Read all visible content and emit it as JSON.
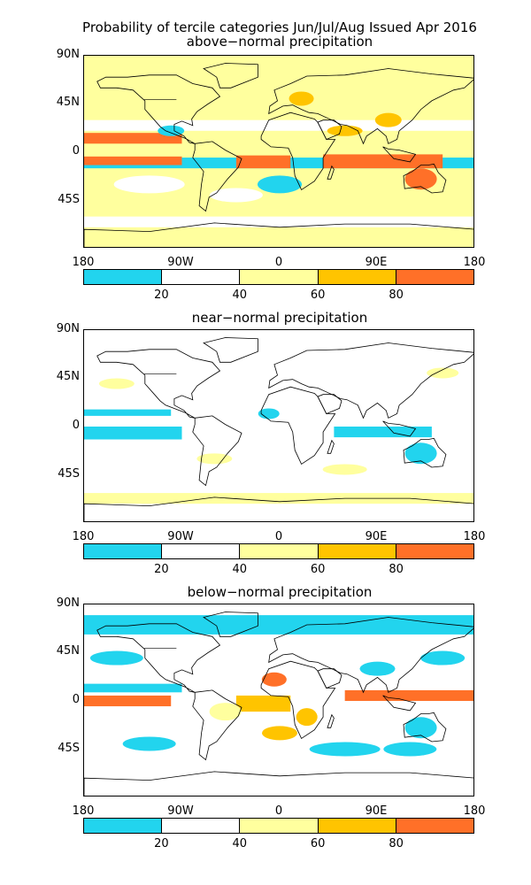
{
  "title": "Probability of tercile categories Jun/Jul/Aug Issued Apr 2016",
  "panels": [
    {
      "subtitle": "above−normal precipitation",
      "variant": "above"
    },
    {
      "subtitle": "near−normal precipitation",
      "variant": "near"
    },
    {
      "subtitle": "below−normal precipitation",
      "variant": "below"
    }
  ],
  "lat_labels": [
    "90N",
    "45N",
    "0",
    "45S"
  ],
  "lon_labels": [
    "180",
    "90W",
    "0",
    "90E",
    "180"
  ],
  "colorbar": {
    "colors": [
      "#22d4ee",
      "#ffffff",
      "#ffff9e",
      "#ffc400",
      "#ff7028"
    ],
    "tick_labels": [
      "20",
      "40",
      "60",
      "80"
    ]
  }
}
